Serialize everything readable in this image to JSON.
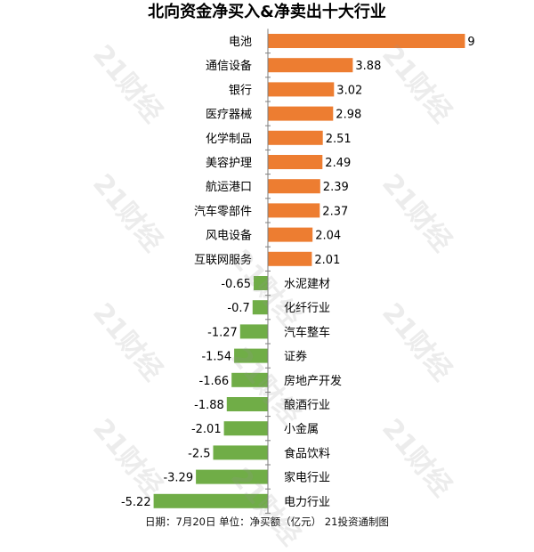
{
  "title": "北向资金净买入&净卖出十大行业",
  "footer": "日期：7月20日 单位：净买额（亿元） 21投资通制图",
  "watermark_text": "21财经",
  "colors": {
    "positive": "#ED7D31",
    "negative": "#70AD47",
    "axis": "#7f7f7f"
  },
  "chart_data": {
    "type": "bar",
    "orientation": "horizontal",
    "title": "北向资金净买入&净卖出十大行业",
    "categories": [
      "电池",
      "通信设备",
      "银行",
      "医疗器械",
      "化学制品",
      "美容护理",
      "航运港口",
      "汽车零部件",
      "风电设备",
      "互联网服务",
      "水泥建材",
      "化纤行业",
      "汽车整车",
      "证券",
      "房地产开发",
      "酿酒行业",
      "小金属",
      "食品饮料",
      "家电行业",
      "电力行业"
    ],
    "values": [
      9,
      3.88,
      3.02,
      2.98,
      2.51,
      2.49,
      2.39,
      2.37,
      2.04,
      2.01,
      -0.65,
      -0.7,
      -1.27,
      -1.54,
      -1.66,
      -1.88,
      -2.01,
      -2.5,
      -3.29,
      -5.22
    ],
    "value_labels": [
      "9",
      "3.88",
      "3.02",
      "2.98",
      "2.51",
      "2.49",
      "2.39",
      "2.37",
      "2.04",
      "2.01",
      "-0.65",
      "-0.7",
      "-1.27",
      "-1.54",
      "-1.66",
      "-1.88",
      "-2.01",
      "-2.5",
      "-3.29",
      "-5.22"
    ],
    "xlabel": "",
    "ylabel": "",
    "grid": false,
    "legend": "none"
  }
}
